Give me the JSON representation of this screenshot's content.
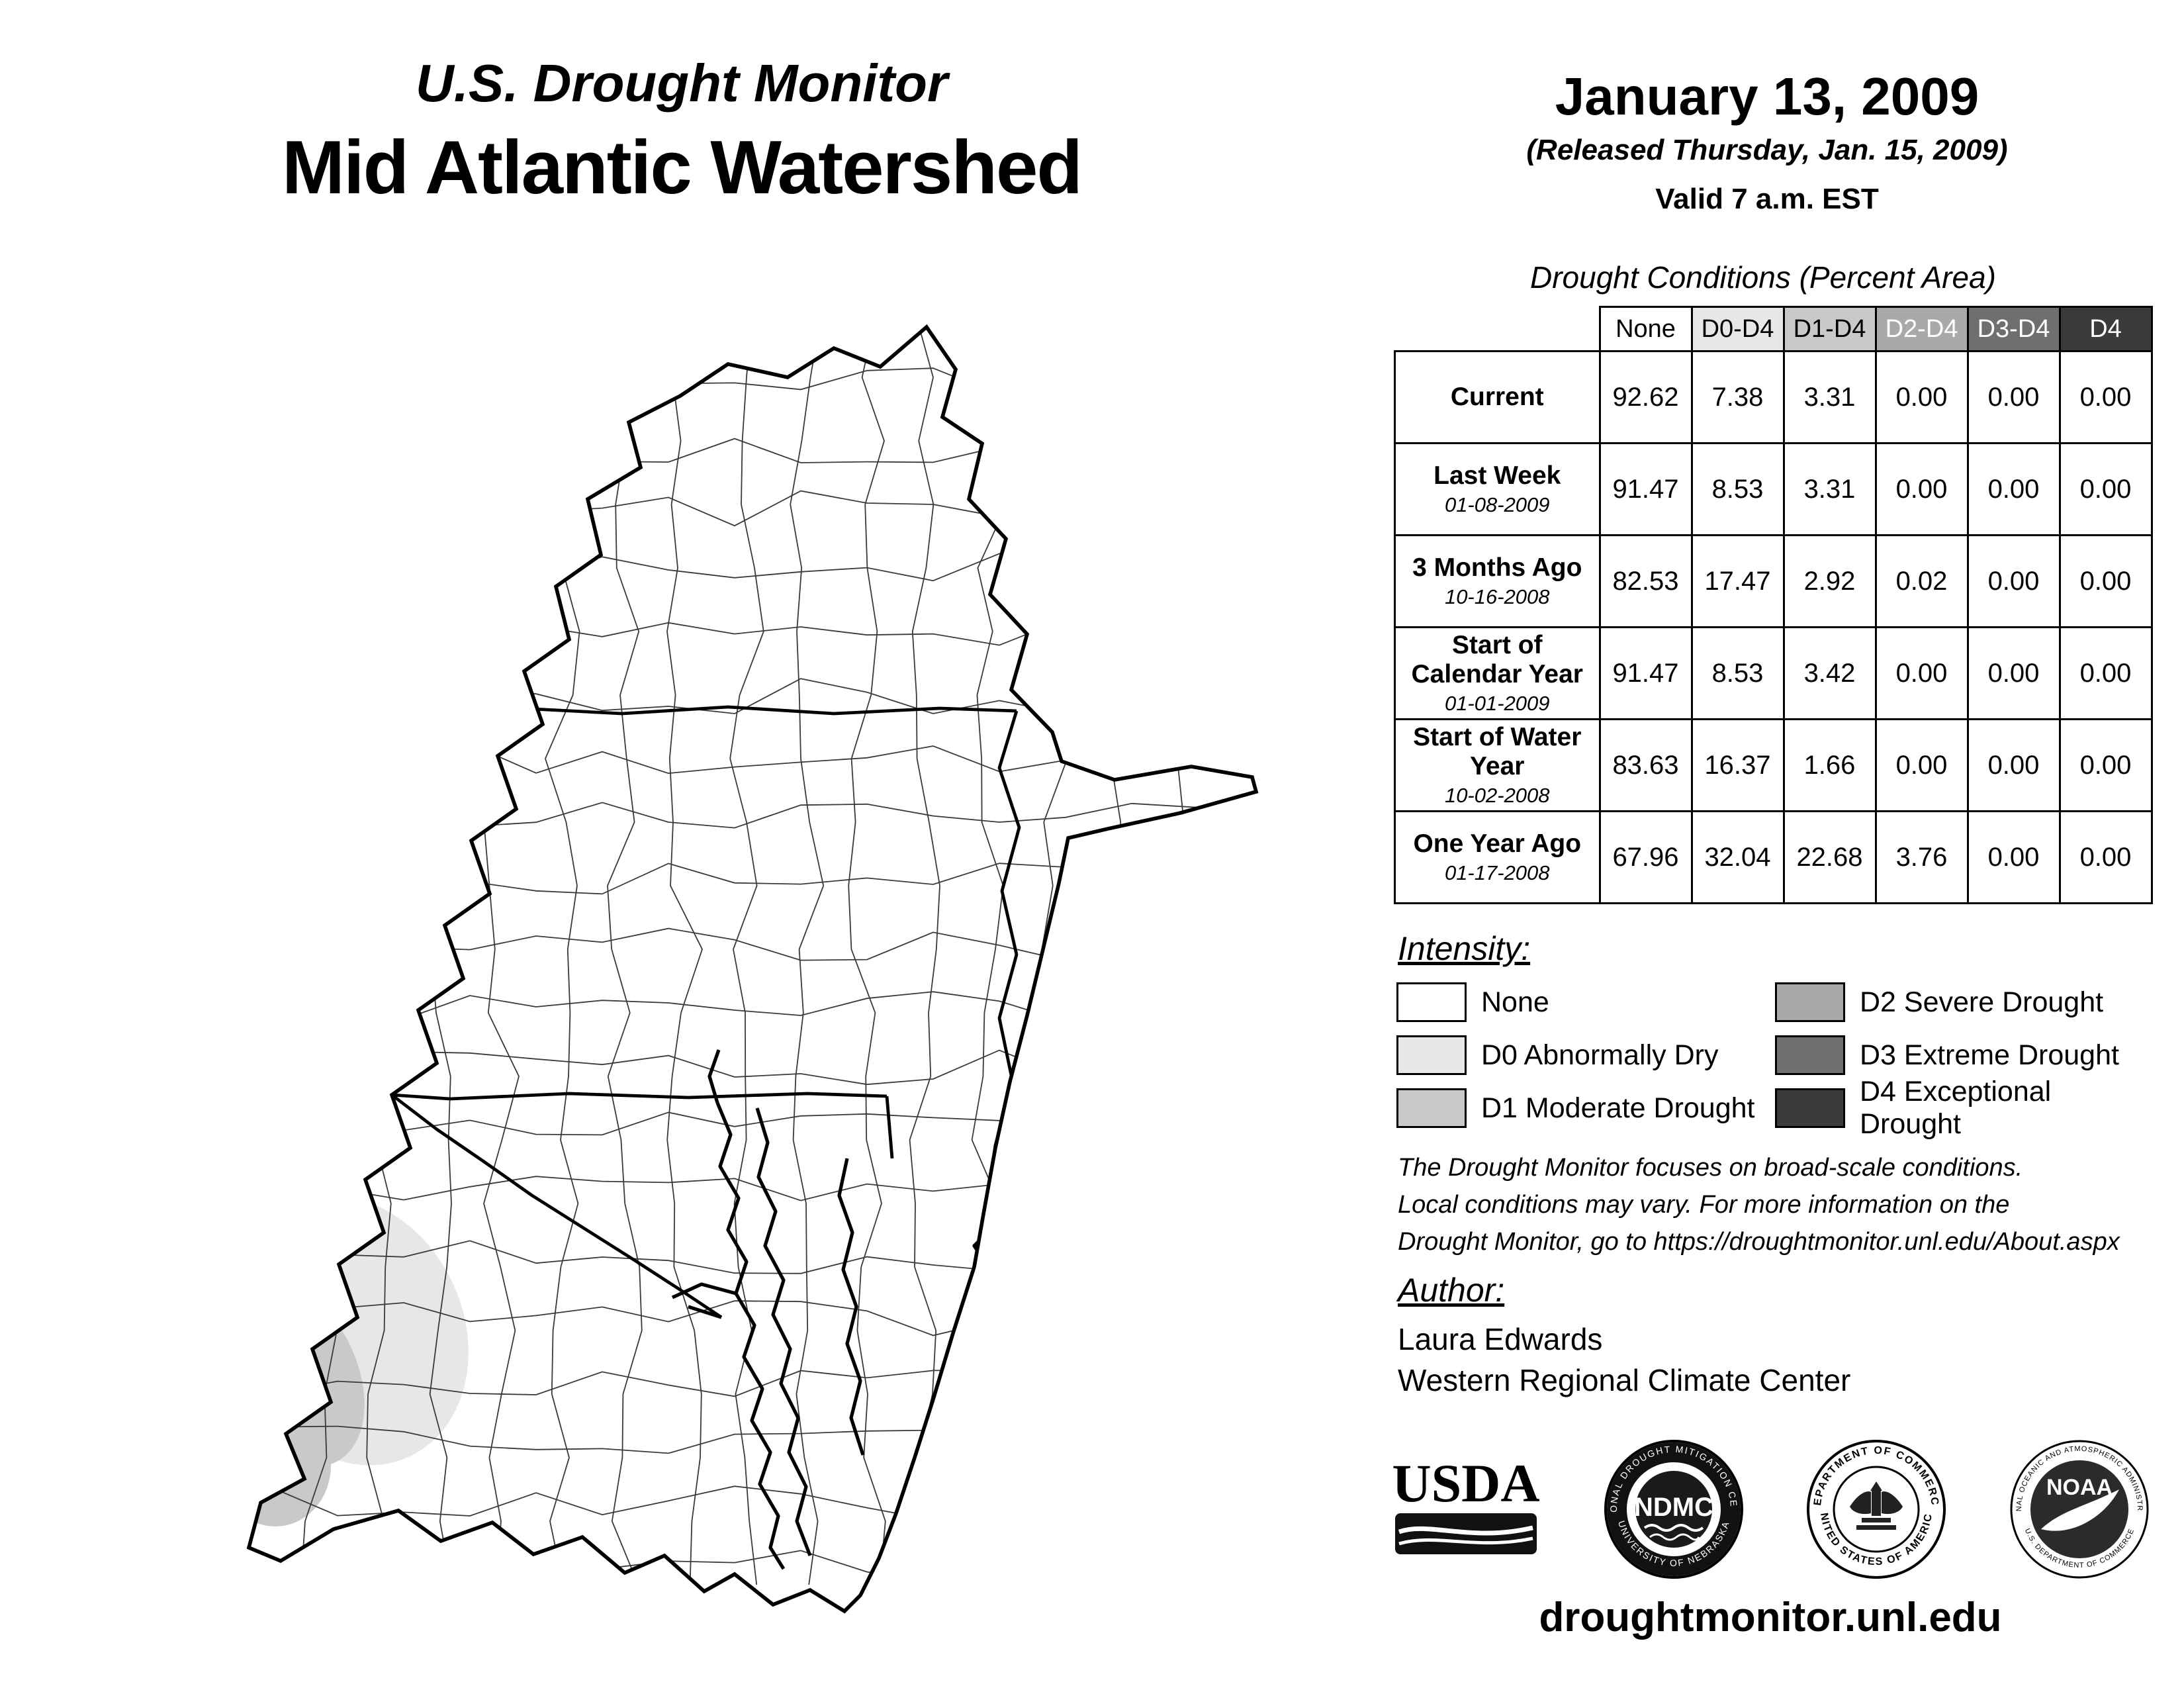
{
  "page": {
    "title_line1": "U.S. Drought Monitor",
    "title_line2": "Mid Atlantic Watershed",
    "date": "January 13, 2009",
    "released": "(Released Thursday, Jan. 15, 2009)",
    "valid": "Valid 7 a.m. EST",
    "url": "droughtmonitor.unl.edu"
  },
  "table": {
    "title": "Drought Conditions (Percent Area)",
    "columns": [
      "None",
      "D0-D4",
      "D1-D4",
      "D2-D4",
      "D3-D4",
      "D4"
    ],
    "header_colors": [
      "#ffffff",
      "#e7e7e7",
      "#c9c9c9",
      "#a9a9a9",
      "#6f6f6f",
      "#3b3b3b"
    ],
    "header_text_colors": [
      "#000000",
      "#000000",
      "#000000",
      "#ffffff",
      "#ffffff",
      "#ffffff"
    ],
    "rows": [
      {
        "label": "Current",
        "sub": "",
        "values": [
          "92.62",
          "7.38",
          "3.31",
          "0.00",
          "0.00",
          "0.00"
        ]
      },
      {
        "label": "Last Week",
        "sub": "01-08-2009",
        "values": [
          "91.47",
          "8.53",
          "3.31",
          "0.00",
          "0.00",
          "0.00"
        ]
      },
      {
        "label": "3 Months Ago",
        "sub": "10-16-2008",
        "values": [
          "82.53",
          "17.47",
          "2.92",
          "0.02",
          "0.00",
          "0.00"
        ]
      },
      {
        "label": "Start of Calendar Year",
        "sub": "01-01-2009",
        "values": [
          "91.47",
          "8.53",
          "3.42",
          "0.00",
          "0.00",
          "0.00"
        ]
      },
      {
        "label": "Start of Water Year",
        "sub": "10-02-2008",
        "values": [
          "83.63",
          "16.37",
          "1.66",
          "0.00",
          "0.00",
          "0.00"
        ]
      },
      {
        "label": "One Year Ago",
        "sub": "01-17-2008",
        "values": [
          "67.96",
          "32.04",
          "22.68",
          "3.76",
          "0.00",
          "0.00"
        ]
      }
    ]
  },
  "legend": {
    "title": "Intensity:",
    "items": [
      {
        "label": "None",
        "color": "#ffffff"
      },
      {
        "label": "D0 Abnormally Dry",
        "color": "#e7e7e7"
      },
      {
        "label": "D1 Moderate Drought",
        "color": "#c9c9c9"
      },
      {
        "label": "D2 Severe Drought",
        "color": "#a9a9a9"
      },
      {
        "label": "D3 Extreme Drought",
        "color": "#6f6f6f"
      },
      {
        "label": "D4 Exceptional Drought",
        "color": "#3b3b3b"
      }
    ]
  },
  "disclaimer": {
    "text": "The Drought Monitor focuses on broad-scale conditions.\nLocal conditions may vary. For more information on the\nDrought Monitor, go to https://droughtmonitor.unl.edu/About.aspx"
  },
  "author": {
    "heading": "Author:",
    "name": "Laura Edwards",
    "org": "Western Regional Climate Center"
  },
  "logos": {
    "usda": {
      "label": "USDA"
    },
    "ndmc": {
      "label": "NDMC",
      "ring_top": "NATIONAL DROUGHT MITIGATION CENTER",
      "ring_bottom": "UNIVERSITY OF NEBRASKA"
    },
    "doc": {
      "ring_top": "DEPARTMENT OF COMMERCE",
      "ring_bottom": "UNITED STATES OF AMERICA"
    },
    "noaa": {
      "label": "NOAA",
      "ring_top": "NATIONAL OCEANIC AND ATMOSPHERIC ADMINISTRATION",
      "ring_bottom": "U.S. DEPARTMENT OF COMMERCE"
    }
  }
}
